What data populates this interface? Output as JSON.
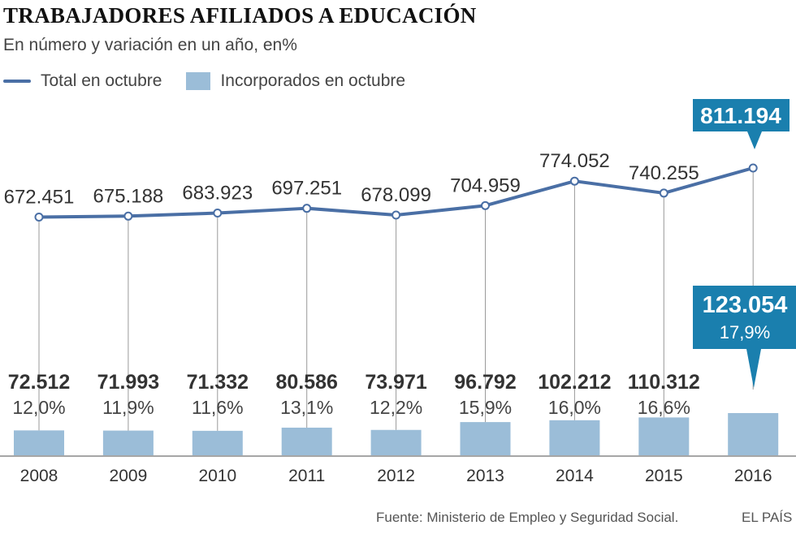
{
  "title": "TRABAJADORES AFILIADOS A EDUCACIÓN",
  "subtitle": "En número y variación en un año, en%",
  "colors": {
    "line": "#4a6fa5",
    "bar": "#9bbdd8",
    "highlight": "#1a7fae",
    "stem": "#9a9a9a",
    "text": "#333333"
  },
  "source": "Fuente: Ministerio de Empleo y Seguridad Social.",
  "brand": "EL PAÍS",
  "chart_data": {
    "type": "line+bar",
    "categories": [
      "2008",
      "2009",
      "2010",
      "2011",
      "2012",
      "2013",
      "2014",
      "2015",
      "2016"
    ],
    "series": [
      {
        "name": "Total en octubre",
        "type": "line",
        "values": [
          672451,
          675188,
          683923,
          697251,
          678099,
          704959,
          774052,
          740255,
          811194
        ],
        "labels": [
          "672.451",
          "675.188",
          "683.923",
          "697.251",
          "678.099",
          "704.959",
          "774.052",
          "740.255",
          "811.194"
        ]
      },
      {
        "name": "Incorporados en octubre",
        "type": "bar",
        "values": [
          72512,
          71993,
          71332,
          80586,
          73971,
          96792,
          102212,
          110312,
          123054
        ],
        "labels": [
          "72.512",
          "71.993",
          "71.332",
          "80.586",
          "73.971",
          "96.792",
          "102.212",
          "110.312",
          "123.054"
        ],
        "pct_labels": [
          "12,0%",
          "11,9%",
          "11,6%",
          "13,1%",
          "12,2%",
          "15,9%",
          "16,0%",
          "16,6%",
          "17,9%"
        ]
      }
    ],
    "highlight_category": "2016"
  }
}
